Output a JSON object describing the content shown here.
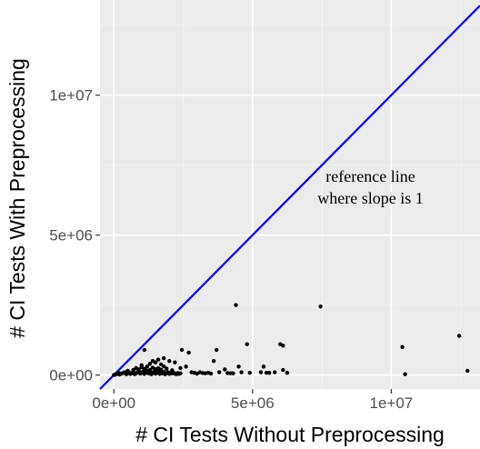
{
  "chart_data": {
    "type": "scatter",
    "xlabel": "# CI Tests Without Preprocessing",
    "ylabel": "# CI Tests With Preprocessing",
    "xlim": [
      -500000,
      13200000
    ],
    "ylim": [
      -500000,
      13400000
    ],
    "x_ticks": [
      0,
      5000000,
      10000000
    ],
    "x_tick_labels": [
      "0e+00",
      "5e+06",
      "1e+07"
    ],
    "y_ticks": [
      0,
      5000000,
      10000000
    ],
    "y_tick_labels": [
      "0e+00",
      "5e+06",
      "1e+07"
    ],
    "grid": true,
    "reference_line": {
      "slope": 1,
      "intercept": 0,
      "color": "#0000ff"
    },
    "annotation": {
      "lines": [
        "reference line",
        "where slope is 1"
      ],
      "x": 9250000,
      "y": 6900000
    },
    "points": [
      [
        0,
        0
      ],
      [
        30000,
        10000
      ],
      [
        60000,
        20000
      ],
      [
        90000,
        30000
      ],
      [
        120000,
        50000
      ],
      [
        150000,
        60000
      ],
      [
        180000,
        70000
      ],
      [
        200000,
        20000
      ],
      [
        250000,
        40000
      ],
      [
        300000,
        60000
      ],
      [
        350000,
        80000
      ],
      [
        400000,
        100000
      ],
      [
        450000,
        30000
      ],
      [
        500000,
        60000
      ],
      [
        550000,
        90000
      ],
      [
        600000,
        40000
      ],
      [
        650000,
        70000
      ],
      [
        700000,
        110000
      ],
      [
        750000,
        30000
      ],
      [
        800000,
        60000
      ],
      [
        850000,
        100000
      ],
      [
        900000,
        130000
      ],
      [
        950000,
        50000
      ],
      [
        1000000,
        80000
      ],
      [
        1050000,
        120000
      ],
      [
        1100000,
        40000
      ],
      [
        1150000,
        90000
      ],
      [
        1200000,
        150000
      ],
      [
        1250000,
        60000
      ],
      [
        1300000,
        100000
      ],
      [
        1350000,
        30000
      ],
      [
        1400000,
        80000
      ],
      [
        1450000,
        120000
      ],
      [
        1500000,
        50000
      ],
      [
        1550000,
        90000
      ],
      [
        1600000,
        140000
      ],
      [
        1650000,
        40000
      ],
      [
        1700000,
        80000
      ],
      [
        1750000,
        60000
      ],
      [
        1800000,
        110000
      ],
      [
        1850000,
        30000
      ],
      [
        1900000,
        70000
      ],
      [
        1950000,
        100000
      ],
      [
        2000000,
        40000
      ],
      [
        2050000,
        80000
      ],
      [
        2100000,
        60000
      ],
      [
        2150000,
        90000
      ],
      [
        2200000,
        50000
      ],
      [
        2250000,
        30000
      ],
      [
        2300000,
        70000
      ],
      [
        2350000,
        40000
      ],
      [
        2400000,
        60000
      ],
      [
        500000,
        150000
      ],
      [
        700000,
        180000
      ],
      [
        900000,
        200000
      ],
      [
        1100000,
        220000
      ],
      [
        1300000,
        180000
      ],
      [
        1500000,
        210000
      ],
      [
        1700000,
        190000
      ],
      [
        1900000,
        230000
      ],
      [
        2100000,
        170000
      ],
      [
        800000,
        250000
      ],
      [
        1000000,
        280000
      ],
      [
        1200000,
        300000
      ],
      [
        1400000,
        260000
      ],
      [
        1600000,
        240000
      ],
      [
        1800000,
        310000
      ],
      [
        1000000,
        350000
      ],
      [
        1300000,
        400000
      ],
      [
        1500000,
        450000
      ],
      [
        1700000,
        380000
      ],
      [
        1100000,
        900000
      ],
      [
        1400000,
        500000
      ],
      [
        1600000,
        550000
      ],
      [
        1800000,
        600000
      ],
      [
        2000000,
        500000
      ],
      [
        2200000,
        450000
      ],
      [
        2400000,
        250000
      ],
      [
        2450000,
        900000
      ],
      [
        2600000,
        300000
      ],
      [
        2700000,
        800000
      ],
      [
        2800000,
        100000
      ],
      [
        2900000,
        80000
      ],
      [
        3000000,
        50000
      ],
      [
        3100000,
        100000
      ],
      [
        3200000,
        70000
      ],
      [
        3300000,
        60000
      ],
      [
        3400000,
        80000
      ],
      [
        3500000,
        50000
      ],
      [
        3600000,
        500000
      ],
      [
        3700000,
        900000
      ],
      [
        3800000,
        100000
      ],
      [
        4000000,
        200000
      ],
      [
        4100000,
        70000
      ],
      [
        4200000,
        60000
      ],
      [
        4300000,
        60000
      ],
      [
        4400000,
        2500000
      ],
      [
        4500000,
        300000
      ],
      [
        4600000,
        100000
      ],
      [
        4800000,
        1100000
      ],
      [
        4900000,
        80000
      ],
      [
        5300000,
        100000
      ],
      [
        5400000,
        300000
      ],
      [
        5500000,
        80000
      ],
      [
        5600000,
        80000
      ],
      [
        5800000,
        100000
      ],
      [
        6000000,
        1100000
      ],
      [
        6100000,
        1050000
      ],
      [
        6100000,
        180000
      ],
      [
        6250000,
        80000
      ],
      [
        7450000,
        2450000
      ],
      [
        10400000,
        1000000
      ],
      [
        10500000,
        30000
      ],
      [
        12450000,
        1400000
      ],
      [
        12750000,
        150000
      ]
    ]
  }
}
